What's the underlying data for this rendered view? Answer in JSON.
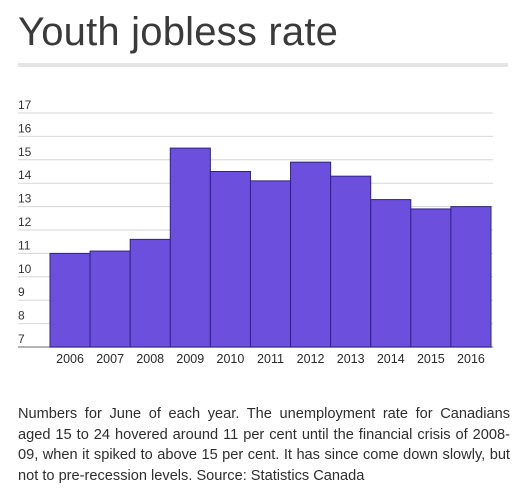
{
  "chart_data": {
    "type": "bar",
    "title": "Youth jobless rate",
    "categories": [
      "2006",
      "2007",
      "2008",
      "2009",
      "2010",
      "2011",
      "2012",
      "2013",
      "2014",
      "2015",
      "2016"
    ],
    "values": [
      11.0,
      11.1,
      11.6,
      15.5,
      14.5,
      14.1,
      14.9,
      14.3,
      13.3,
      12.9,
      13.0
    ],
    "y_ticks": [
      "7",
      "8",
      "9",
      "10",
      "11",
      "12",
      "13",
      "14",
      "15",
      "16",
      "17"
    ],
    "ylim": [
      7,
      17
    ],
    "grid": true,
    "bar_color": "#6c4fdd",
    "bar_edge_color": "#2e2580"
  },
  "caption": "Numbers for June of each year. The unemployment rate for Canadians aged 15 to 24 hovered around 11 per cent until the financial crisis of 2008-09, when it spiked to above 15 per cent. It has since come down slowly, but not to pre-recession levels. Source: Statistics Canada"
}
